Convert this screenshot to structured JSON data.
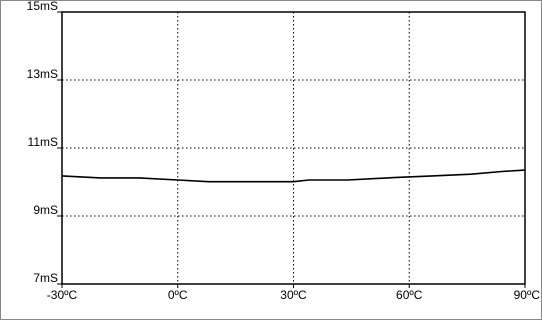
{
  "chart_data": {
    "type": "line",
    "title": "",
    "xlabel": "",
    "ylabel": "",
    "x_ticks": [
      "-30ºC",
      "0ºC",
      "30ºC",
      "60ºC",
      "90ºC"
    ],
    "y_ticks": [
      "7mS",
      "9mS",
      "11mS",
      "13mS",
      "15mS"
    ],
    "xlim": [
      -30,
      90
    ],
    "ylim": [
      7,
      15
    ],
    "grid": true,
    "legend": "none",
    "series": [
      {
        "x": [
          -30,
          -20,
          -10,
          0,
          8,
          20,
          30,
          34,
          44,
          56,
          66,
          76,
          84,
          90
        ],
        "y": [
          10.18,
          10.12,
          10.12,
          10.06,
          10.01,
          10.01,
          10.01,
          10.06,
          10.06,
          10.13,
          10.18,
          10.23,
          10.31,
          10.35
        ]
      }
    ]
  }
}
